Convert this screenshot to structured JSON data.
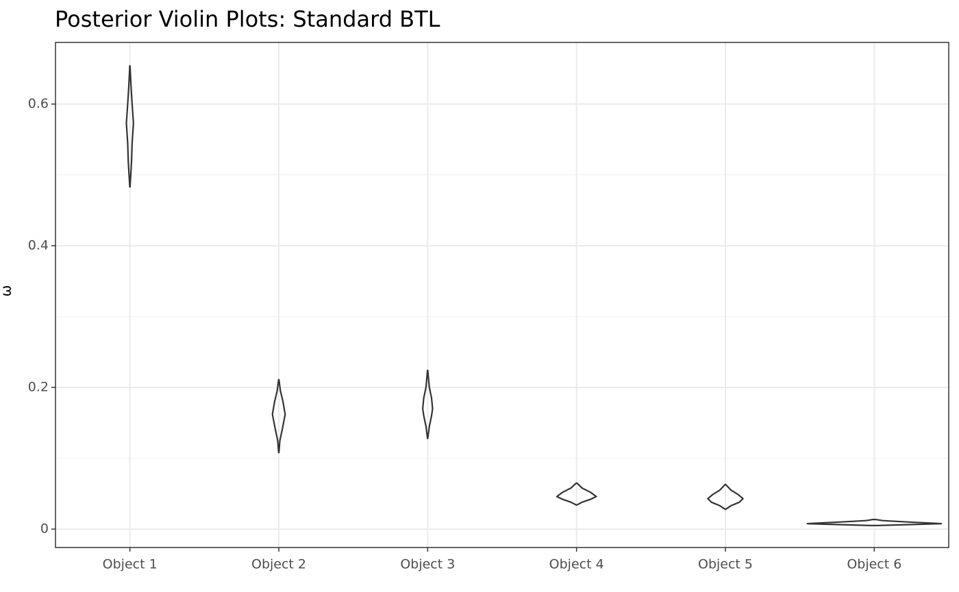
{
  "chart_data": {
    "type": "violin",
    "title": "Posterior Violin Plots: Standard BTL",
    "y_label": "ω",
    "categories": [
      "Object 1",
      "Object 2",
      "Object 3",
      "Object 4",
      "Object 5",
      "Object 6"
    ],
    "violins": [
      {
        "values": [
          0.483,
          0.5,
          0.52,
          0.545,
          0.573,
          0.6,
          0.625,
          0.654
        ],
        "density": [
          0.3,
          3,
          6,
          8,
          12.6,
          8,
          4,
          0.3
        ]
      },
      {
        "values": [
          0.108,
          0.125,
          0.14,
          0.162,
          0.18,
          0.195,
          0.211
        ],
        "density": [
          0.5,
          4,
          12,
          22.7,
          15,
          6,
          0.5
        ]
      },
      {
        "values": [
          0.128,
          0.145,
          0.16,
          0.17,
          0.185,
          0.2,
          0.224
        ],
        "density": [
          0.5,
          6,
          14,
          17.7,
          14,
          6,
          0.5
        ]
      },
      {
        "values": [
          0.034,
          0.038,
          0.042,
          0.046,
          0.052,
          0.058,
          0.065
        ],
        "density": [
          1,
          20,
          50,
          70.7,
          50,
          20,
          1
        ]
      },
      {
        "values": [
          0.028,
          0.033,
          0.038,
          0.043,
          0.049,
          0.055,
          0.063
        ],
        "density": [
          1,
          20,
          50,
          63,
          45,
          20,
          1
        ]
      },
      {
        "values": [
          0.005,
          0.0077,
          0.01,
          0.012,
          0.0135
        ],
        "density": [
          10,
          240,
          120,
          30,
          5
        ]
      }
    ],
    "color": "#333333",
    "ylim": [
      -0.026,
      0.687
    ],
    "yticks": [
      0,
      0.2,
      0.4,
      0.6
    ],
    "y_minor_grid": [
      0.1,
      0.3,
      0.5
    ],
    "grid": true
  }
}
